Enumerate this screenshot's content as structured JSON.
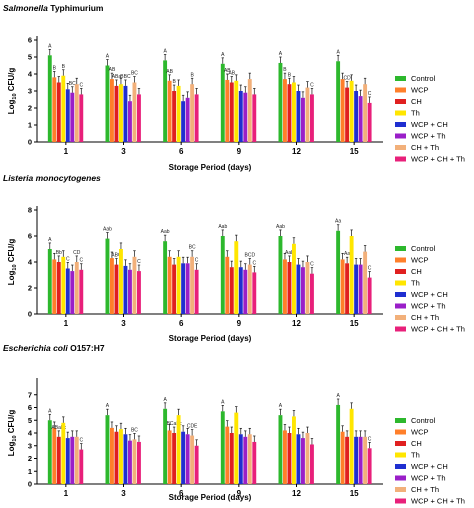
{
  "chart_data": [
    {
      "type": "bar",
      "title_italic": "Salmonella",
      "title_plain": " Typhimurium",
      "xlabel": "Storage Period (days)",
      "ylabel_main": "Log",
      "ylabel_sub": "10",
      "ylabel_rest": " CFU/g",
      "ylim": [
        0,
        6
      ],
      "yticks": [
        "0",
        "1",
        "2",
        "3",
        "4",
        "5",
        "6"
      ],
      "categories": [
        "1",
        "3",
        "6",
        "9",
        "12",
        "15"
      ],
      "series": [
        {
          "name": "Control",
          "color": "#2db82d",
          "values": [
            5.1,
            4.5,
            4.8,
            4.6,
            4.65,
            4.75
          ]
        },
        {
          "name": "WCP",
          "color": "#ff7f2a",
          "values": [
            3.8,
            3.7,
            3.6,
            3.65,
            3.7,
            3.7
          ]
        },
        {
          "name": "CH",
          "color": "#e02020",
          "values": [
            3.5,
            3.3,
            3.0,
            3.5,
            3.4,
            3.2
          ]
        },
        {
          "name": "Th",
          "color": "#ffe600",
          "values": [
            3.9,
            3.4,
            3.3,
            3.6,
            3.5,
            3.6
          ]
        },
        {
          "name": "WCP + CH",
          "color": "#1f2fd0",
          "values": [
            3.1,
            3.3,
            2.4,
            3.0,
            3.0,
            3.0
          ]
        },
        {
          "name": "WCP + Th",
          "color": "#9a1fc8",
          "values": [
            2.9,
            2.4,
            2.6,
            2.9,
            2.6,
            2.7
          ]
        },
        {
          "name": "CH + Th",
          "color": "#f2b07a",
          "values": [
            3.4,
            3.5,
            3.4,
            3.7,
            3.2,
            3.4
          ]
        },
        {
          "name": "WCP + CH + Th",
          "color": "#e8207a",
          "values": [
            2.8,
            2.8,
            2.8,
            2.8,
            2.8,
            2.3
          ]
        }
      ],
      "annotations": [
        [
          "A",
          "B",
          "",
          "B",
          "",
          "BC",
          "",
          "C"
        ],
        [
          "A",
          "AB",
          "ABa",
          "",
          "BBC",
          "",
          "BC",
          ""
        ],
        [
          "A",
          "AB",
          "B",
          "",
          "",
          "",
          "B",
          ""
        ],
        [
          "A",
          "AB",
          "AB",
          "",
          "",
          "",
          "",
          ""
        ],
        [
          "A",
          "B",
          "B",
          "",
          "",
          "",
          "",
          "C"
        ],
        [
          "A",
          "",
          "CD",
          "",
          "",
          "",
          "",
          "C"
        ]
      ]
    },
    {
      "type": "bar",
      "title_italic": "Listeria monocytogenes",
      "title_plain": "",
      "xlabel": "Storage Period (days)",
      "ylabel_main": "Log",
      "ylabel_sub": "10",
      "ylabel_rest": " CFU/g",
      "ylim": [
        0,
        8
      ],
      "yticks": [
        "0",
        "2",
        "4",
        "6",
        "8"
      ],
      "categories": [
        "1",
        "3",
        "6",
        "9",
        "12",
        "15"
      ],
      "series": [
        {
          "name": "Control",
          "color": "#2db82d",
          "values": [
            5.0,
            5.8,
            5.6,
            6.0,
            6.0,
            6.4
          ]
        },
        {
          "name": "WCP",
          "color": "#ff7f2a",
          "values": [
            4.2,
            4.3,
            4.4,
            4.4,
            4.2,
            4.2
          ]
        },
        {
          "name": "CH",
          "color": "#e02020",
          "values": [
            4.0,
            3.8,
            3.8,
            3.6,
            4.0,
            3.9
          ]
        },
        {
          "name": "Th",
          "color": "#ffe600",
          "values": [
            4.4,
            5.0,
            4.4,
            5.6,
            5.4,
            6.0
          ]
        },
        {
          "name": "WCP + CH",
          "color": "#1f2fd0",
          "values": [
            3.5,
            3.7,
            3.9,
            3.6,
            3.8,
            3.8
          ]
        },
        {
          "name": "WCP + Th",
          "color": "#9a1fc8",
          "values": [
            3.3,
            3.4,
            3.9,
            3.4,
            3.6,
            3.8
          ]
        },
        {
          "name": "CH + Th",
          "color": "#f2b07a",
          "values": [
            4.0,
            4.4,
            4.4,
            3.8,
            4.0,
            4.8
          ]
        },
        {
          "name": "WCP + CH + Th",
          "color": "#e8207a",
          "values": [
            3.4,
            3.3,
            3.4,
            3.2,
            3.1,
            2.8
          ]
        }
      ],
      "annotations": [
        [
          "A",
          "",
          "Bb",
          "",
          "C",
          "",
          "CD",
          "C"
        ],
        [
          "Aab",
          "",
          "ABC",
          "",
          "",
          "",
          "",
          "C"
        ],
        [
          "Aab",
          "",
          "",
          "",
          "",
          "",
          "BC",
          "C"
        ],
        [
          "Aab",
          "",
          "",
          "",
          "",
          "",
          "BCD",
          "C"
        ],
        [
          "Aab",
          "",
          "Aab",
          "",
          "",
          "",
          "",
          "C"
        ],
        [
          "Aa",
          "",
          "Aa",
          "",
          "",
          "",
          "",
          "C"
        ]
      ]
    },
    {
      "type": "bar",
      "title_italic": "Escherichia coli",
      "title_plain": " O157:H7",
      "xlabel": "Storage Period (days)",
      "ylabel_main": "Log",
      "ylabel_sub": "10",
      "ylabel_rest": " CFU/g",
      "ylim": [
        0,
        8
      ],
      "yticks": [
        "0",
        "1",
        "2",
        "3",
        "4",
        "5",
        "6",
        "7"
      ],
      "categories": [
        "1",
        "3",
        "6",
        "9",
        "12",
        "15"
      ],
      "series": [
        {
          "name": "Control",
          "color": "#2db82d",
          "values": [
            5.0,
            5.4,
            5.9,
            5.7,
            5.4,
            6.2
          ]
        },
        {
          "name": "WCP",
          "color": "#ff7f2a",
          "values": [
            4.4,
            4.4,
            4.2,
            4.5,
            4.2,
            4.1
          ]
        },
        {
          "name": "CH",
          "color": "#e02020",
          "values": [
            3.7,
            4.1,
            4.0,
            4.0,
            4.0,
            3.7
          ]
        },
        {
          "name": "Th",
          "color": "#ffe600",
          "values": [
            4.8,
            4.3,
            5.4,
            5.6,
            5.3,
            5.9
          ]
        },
        {
          "name": "WCP + CH",
          "color": "#1f2fd0",
          "values": [
            3.6,
            3.9,
            4.1,
            3.9,
            3.9,
            3.7
          ]
        },
        {
          "name": "WCP + Th",
          "color": "#9a1fc8",
          "values": [
            3.7,
            3.4,
            3.9,
            3.7,
            3.6,
            3.7
          ]
        },
        {
          "name": "CH + Th",
          "color": "#f2b07a",
          "values": [
            3.7,
            3.5,
            3.8,
            3.9,
            4.0,
            3.7
          ]
        },
        {
          "name": "WCP + CH + Th",
          "color": "#e8207a",
          "values": [
            2.7,
            3.3,
            3.0,
            3.3,
            3.1,
            2.8
          ]
        }
      ],
      "annotations": [
        [
          "A",
          "",
          "ABabc",
          "",
          "",
          "",
          "",
          "C"
        ],
        [
          "A",
          "",
          "",
          "",
          "",
          "",
          "BC",
          ""
        ],
        [
          "A",
          "",
          "BCabc",
          "",
          "",
          "",
          "CDE",
          ""
        ],
        [
          "A",
          "",
          "",
          "",
          "",
          "",
          "",
          ""
        ],
        [
          "A",
          "",
          "",
          "",
          "",
          "",
          "",
          ""
        ],
        [
          "A",
          "",
          "",
          "",
          "",
          "",
          "",
          "C"
        ]
      ]
    }
  ]
}
